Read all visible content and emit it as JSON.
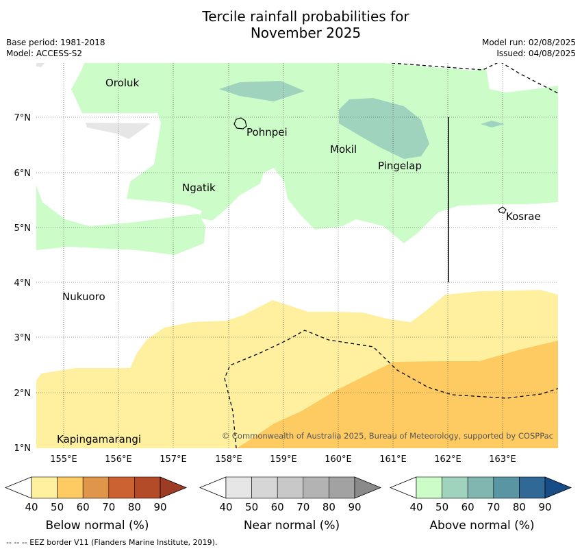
{
  "title_lines": [
    "Tercile rainfall probabilities for",
    "November 2025"
  ],
  "meta_left": [
    "Base period: 1981-2018",
    "Model: ACCESS-S2"
  ],
  "meta_right": [
    "Model run: 02/08/2025",
    "Issued: 04/08/2025"
  ],
  "lat_labels": [
    "7°N",
    "6°N",
    "5°N",
    "4°N",
    "3°N",
    "2°N",
    "1°N"
  ],
  "lon_labels": [
    "155°E",
    "156°E",
    "157°E",
    "158°E",
    "159°E",
    "160°E",
    "161°E",
    "162°E",
    "163°E"
  ],
  "places": [
    "Oroluk",
    "Pohnpei",
    "Mokil",
    "Pingelap",
    "Ngatik",
    "Kosrae",
    "Nukuoro",
    "Kapingamarangi"
  ],
  "copyright": "© Commonwealth of Australia 2025, Bureau of Meteorology, supported by COSPPac",
  "colorbars": [
    {
      "name": "Below normal (%)",
      "ticks": [
        "40",
        "50",
        "60",
        "70",
        "80",
        "90"
      ],
      "colors": [
        "#fff0a0",
        "#fecb63",
        "#e0964a",
        "#cc6132",
        "#b34a28",
        "#9d3b24"
      ]
    },
    {
      "name": "Near normal (%)",
      "ticks": [
        "40",
        "50",
        "60",
        "70",
        "80",
        "90"
      ],
      "colors": [
        "#e6e6e6",
        "#d6d6d6",
        "#c8c8c8",
        "#b3b3b3",
        "#a2a2a2",
        "#8a8a8a"
      ]
    },
    {
      "name": "Above normal (%)",
      "ticks": [
        "40",
        "50",
        "60",
        "70",
        "80",
        "90"
      ],
      "colors": [
        "#ccfcc8",
        "#9fd3bd",
        "#80b5b0",
        "#5a95a4",
        "#306896",
        "#184c86"
      ]
    }
  ],
  "footer": "-- -- -- EEZ border V11 (Flanders Marine Institute, 2019)."
}
